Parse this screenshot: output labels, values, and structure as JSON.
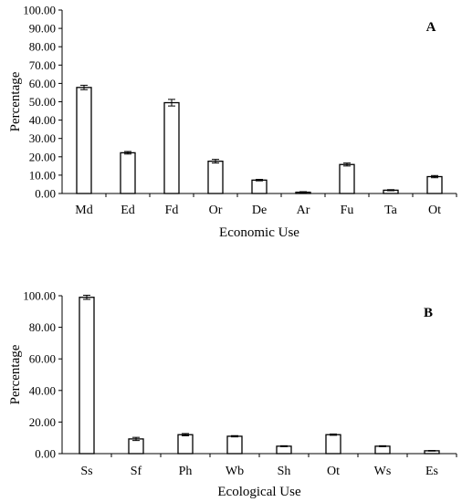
{
  "chart_data": [
    {
      "type": "bar",
      "panel_label": "A",
      "xlabel": "Economic Use",
      "ylabel": "Percentage",
      "ylim": [
        0,
        100
      ],
      "yticks": [
        "0.00",
        "10.00",
        "20.00",
        "30.00",
        "40.00",
        "50.00",
        "60.00",
        "70.00",
        "80.00",
        "90.00",
        "100.00"
      ],
      "categories": [
        "Md",
        "Ed",
        "Fd",
        "Or",
        "De",
        "Ar",
        "Fu",
        "Ta",
        "Ot"
      ],
      "values": [
        57.8,
        22.2,
        49.5,
        17.6,
        7.3,
        0.7,
        15.8,
        1.8,
        9.2
      ],
      "errors": [
        1.2,
        0.7,
        1.8,
        1.0,
        0.4,
        0.3,
        0.8,
        0.3,
        0.6
      ],
      "grid": false
    },
    {
      "type": "bar",
      "panel_label": "B",
      "xlabel": "Ecological Use",
      "ylabel": "Percentage",
      "ylim": [
        0,
        100
      ],
      "yticks": [
        "0.00",
        "20.00",
        "40.00",
        "60.00",
        "80.00",
        "100.00"
      ],
      "categories": [
        "Ss",
        "Sf",
        "Ph",
        "Wb",
        "Sh",
        "Ot",
        "Ws",
        "Es"
      ],
      "values": [
        99.0,
        9.3,
        12.0,
        11.0,
        4.7,
        12.0,
        4.7,
        1.8
      ],
      "errors": [
        1.3,
        1.0,
        0.7,
        0.4,
        0.3,
        0.4,
        0.3,
        0.2
      ],
      "grid": false
    }
  ]
}
